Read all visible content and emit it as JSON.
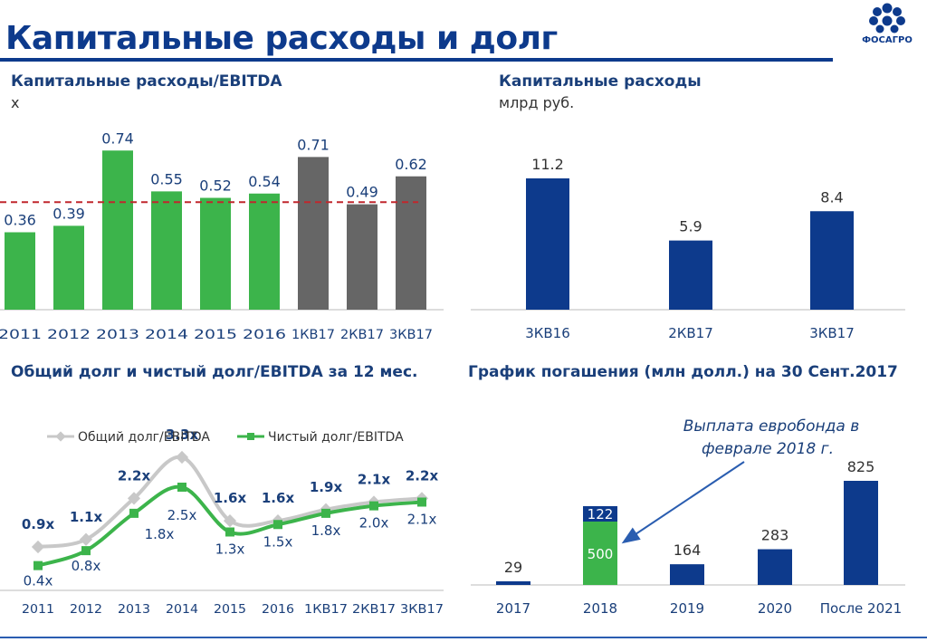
{
  "slide": {
    "title": "Капитальные расходы и долг",
    "logo_text": "ФОСАГРО",
    "colors": {
      "brand_blue": "#0d3a8c",
      "green": "#3cb44b",
      "grey": "#666666",
      "bar_blue": "#0d3a8c",
      "dashed_red": "#c0272d"
    }
  },
  "panels": {
    "capex_ebitda": {
      "title": "Капитальные расходы/EBITDA",
      "unit": "x"
    },
    "capex": {
      "title": "Капитальные расходы",
      "unit": "млрд руб."
    },
    "debt": {
      "title": "Общий долг и чистый долг/EBITDA за 12 мес."
    },
    "repayment": {
      "title": "График погашения (млн долл.) на 30 Сент.2017"
    }
  },
  "chart_data": [
    {
      "type": "bar",
      "categories": [
        "2011",
        "2012",
        "2013",
        "2014",
        "2015",
        "2016",
        "1КВ17",
        "2КВ17",
        "3КВ17"
      ],
      "values": [
        0.36,
        0.39,
        0.74,
        0.55,
        0.52,
        0.54,
        0.71,
        0.49,
        0.62
      ],
      "data_labels": [
        "0.36",
        "0.39",
        "0.74",
        "0.55",
        "0.52",
        "0.54",
        "0.71",
        "0.49",
        "0.62"
      ],
      "bar_colors": [
        "#3cb44b",
        "#3cb44b",
        "#3cb44b",
        "#3cb44b",
        "#3cb44b",
        "#3cb44b",
        "#666666",
        "#666666",
        "#666666"
      ],
      "reference_line": {
        "value": 0.5,
        "style": "dashed",
        "color": "#c0272d"
      },
      "ylim": [
        0,
        0.8
      ]
    },
    {
      "type": "bar",
      "categories": [
        "3КВ16",
        "2КВ17",
        "3КВ17"
      ],
      "values": [
        11.2,
        5.9,
        8.4
      ],
      "data_labels": [
        "11.2",
        "5.9",
        "8.4"
      ],
      "ylim": [
        0,
        12
      ]
    },
    {
      "type": "line",
      "categories": [
        "2011",
        "2012",
        "2013",
        "2014",
        "2015",
        "2016",
        "1КВ17",
        "2КВ17",
        "3КВ17"
      ],
      "legend_position": "top",
      "series": [
        {
          "name": "Общий долг/EBITDA",
          "color": "#c8c8c8",
          "marker": "diamond",
          "values": [
            0.9,
            1.1,
            2.2,
            3.3,
            1.6,
            1.6,
            1.9,
            2.1,
            2.2
          ],
          "data_labels": [
            "0.9x",
            "1.1x",
            "2.2x",
            "3.3x",
            "1.6x",
            "1.6x",
            "1.9x",
            "2.1x",
            "2.2x"
          ]
        },
        {
          "name": "Чистый долг/EBITDA",
          "color": "#3cb44b",
          "marker": "square",
          "values": [
            0.4,
            0.8,
            1.8,
            2.5,
            1.3,
            1.5,
            1.8,
            2.0,
            2.1
          ],
          "data_labels": [
            "0.4x",
            "0.8x",
            "1.8x",
            "2.5x",
            "1.3x",
            "1.5x",
            "1.8x",
            "2.0x",
            "2.1x"
          ]
        }
      ],
      "ylim": [
        0,
        3.6
      ]
    },
    {
      "type": "bar",
      "stacked": true,
      "categories": [
        "2017",
        "2018",
        "2019",
        "2020",
        "После 2021"
      ],
      "series": [
        {
          "name": "",
          "color": "#3cb44b",
          "values": [
            0,
            500,
            0,
            0,
            0
          ]
        },
        {
          "name": "",
          "color": "#0d3a8c",
          "values": [
            29,
            122,
            164,
            283,
            825
          ]
        }
      ],
      "data_labels": [
        "29",
        "122",
        "164",
        "283",
        "825"
      ],
      "stack_labels": {
        "2018": "500"
      },
      "annotation": {
        "text": "Выплата евробонда в феврале 2018 г.",
        "lines": [
          "Выплата евробонда в",
          "феврале 2018 г."
        ],
        "points_to": "2018"
      },
      "ylim": [
        0,
        850
      ]
    }
  ]
}
